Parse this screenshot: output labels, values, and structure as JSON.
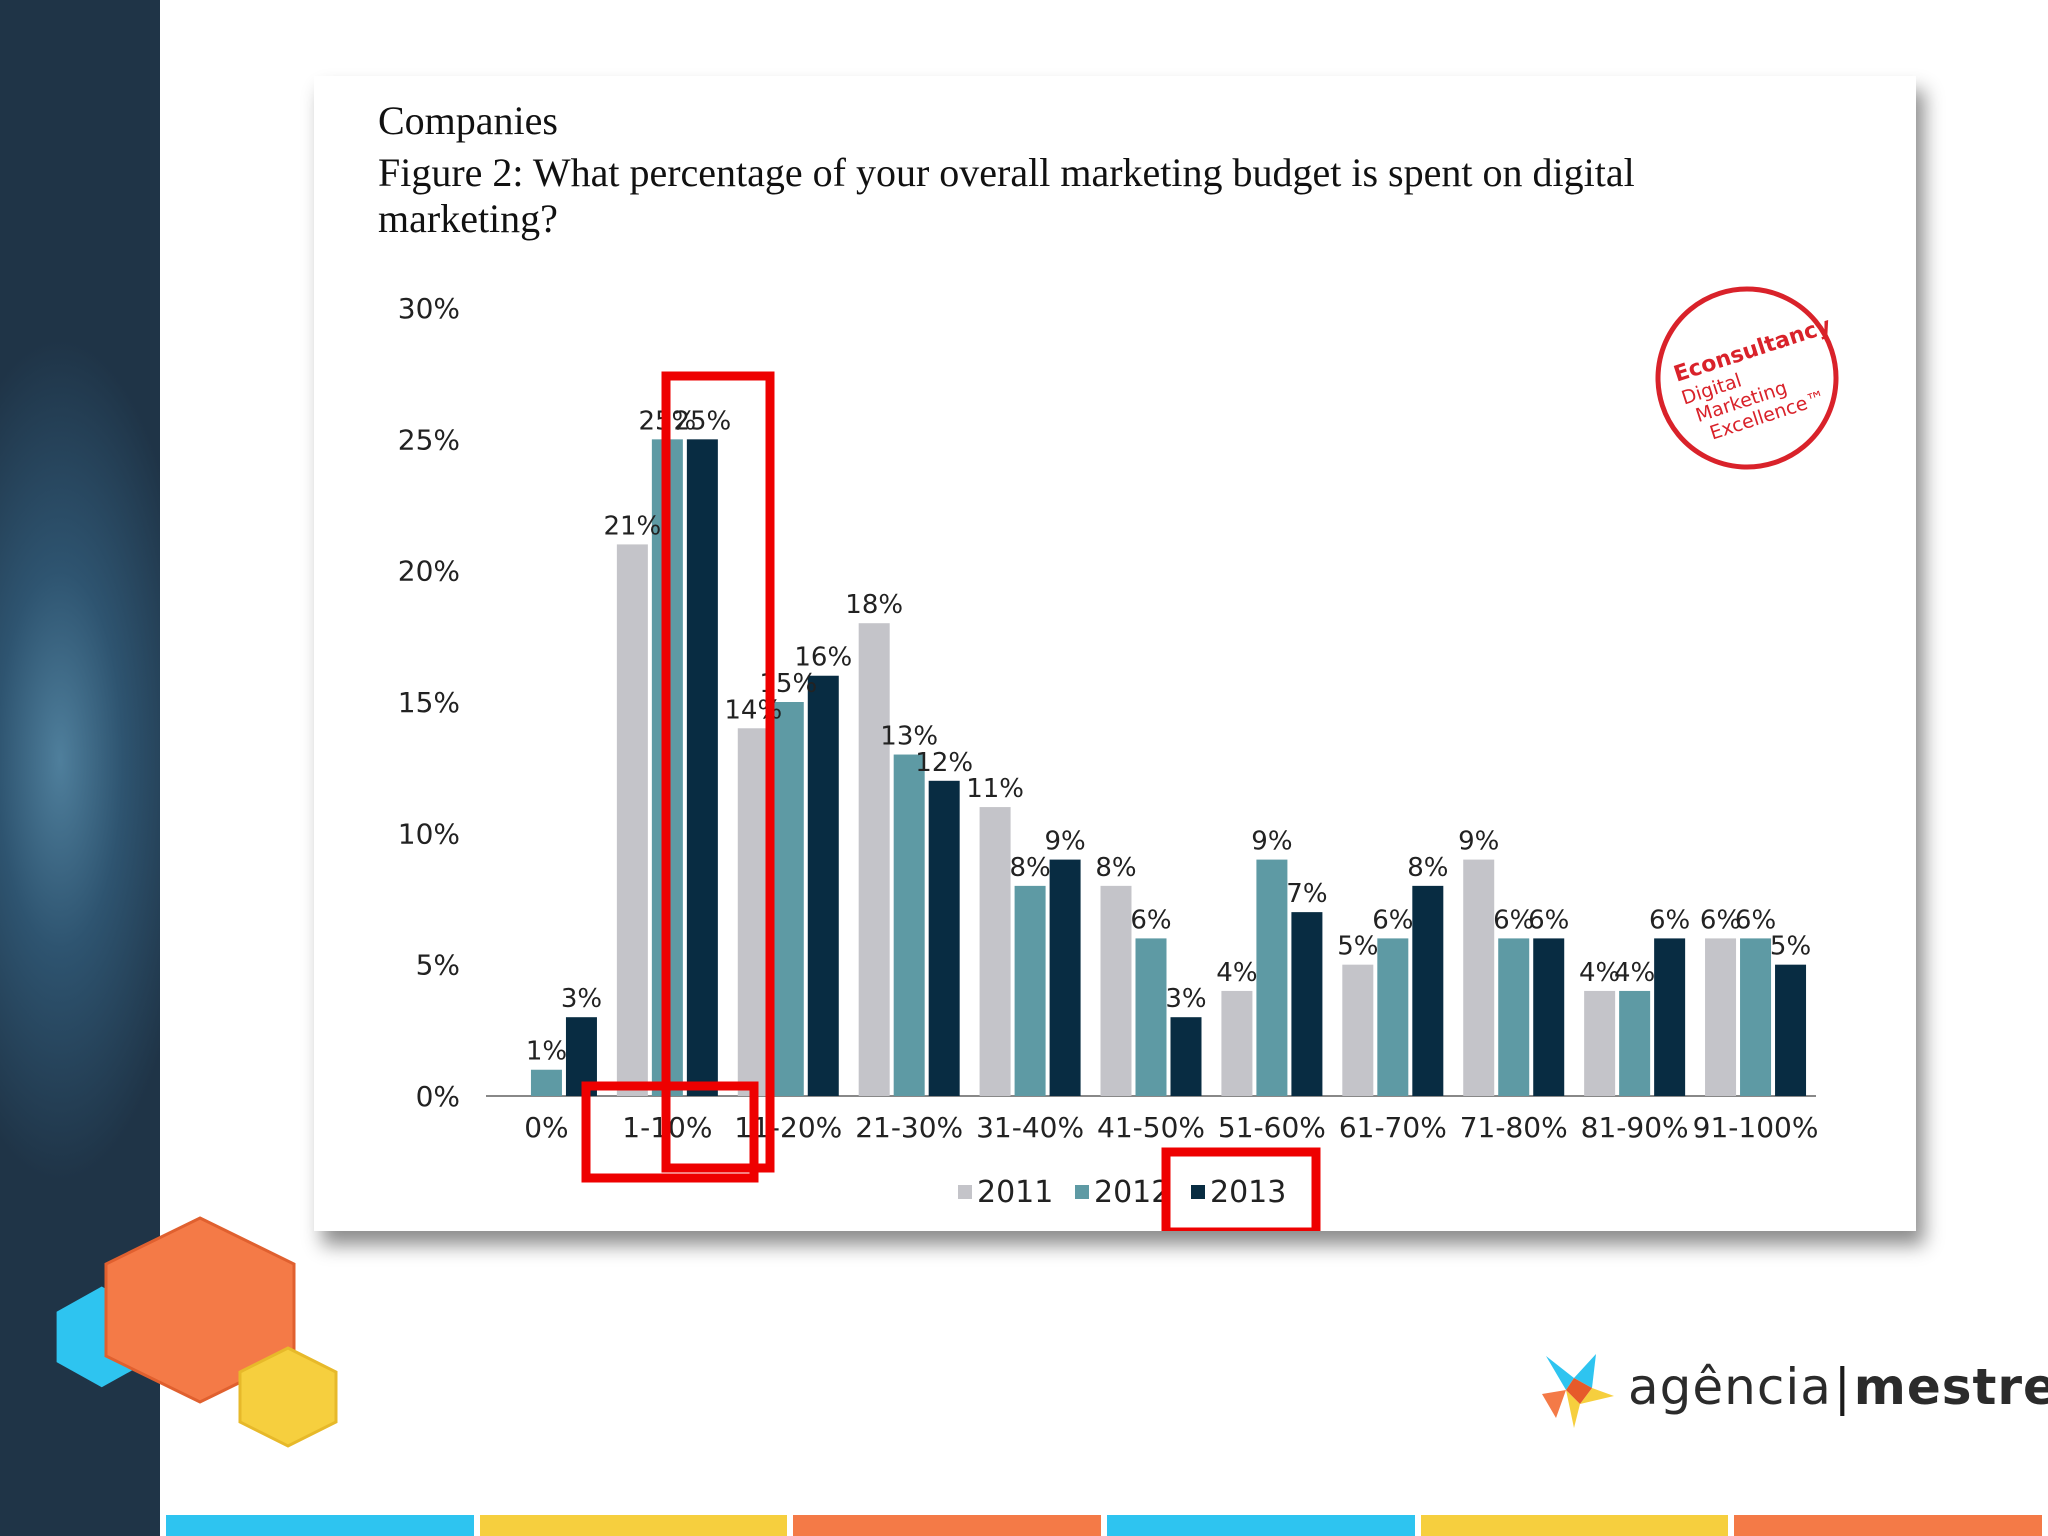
{
  "slide": {
    "heading_line1": "Companies",
    "heading_line2": "Figure 2: What percentage of your overall marketing budget is spent on digital",
    "heading_line3": "marketing?"
  },
  "stamp": {
    "brand": "Econsultancy",
    "line1": "Digital",
    "line2": "Marketing",
    "line3": "Excellence™",
    "color": "#d9222a"
  },
  "logo": {
    "part1": "agência",
    "separator": "|",
    "part2": "mestre",
    "icon": "star-burst-icon"
  },
  "chart_data": {
    "type": "bar",
    "title": "What percentage of your overall marketing budget is spent on digital marketing?",
    "categories": [
      "0%",
      "1-10%",
      "11-20%",
      "21-30%",
      "31-40%",
      "41-50%",
      "51-60%",
      "61-70%",
      "71-80%",
      "81-90%",
      "91-100%"
    ],
    "series": [
      {
        "name": "2011",
        "color": "#c4c4c9",
        "values": [
          0,
          21,
          14,
          18,
          11,
          8,
          4,
          5,
          9,
          4,
          6
        ],
        "labels": [
          "",
          "21%",
          "14%",
          "18%",
          "11%",
          "8%",
          "4%",
          "5%",
          "9%",
          "4%",
          "6%"
        ]
      },
      {
        "name": "2012",
        "color": "#5e9aa4",
        "values": [
          1,
          25,
          15,
          13,
          8,
          6,
          9,
          6,
          6,
          4,
          6
        ],
        "labels": [
          "1%",
          "25%",
          "15%",
          "13%",
          "8%",
          "6%",
          "9%",
          "6%",
          "6%",
          "4%",
          "6%"
        ]
      },
      {
        "name": "2013",
        "color": "#082c42",
        "values": [
          3,
          25,
          16,
          12,
          9,
          3,
          7,
          8,
          6,
          6,
          5
        ],
        "labels": [
          "3%",
          "25%",
          "16%",
          "12%",
          "9%",
          "3%",
          "7%",
          "8%",
          "6%",
          "6%",
          "5%"
        ]
      }
    ],
    "yticks": [
      "0%",
      "5%",
      "10%",
      "15%",
      "20%",
      "25%",
      "30%"
    ],
    "ylim": [
      0,
      30
    ],
    "xlabel": "",
    "ylabel": "",
    "legend": "bottom",
    "highlight_color": "#ee0000",
    "highlights": [
      "1-10% 2013 bar",
      "1-10% category label",
      "2013 legend entry"
    ]
  },
  "colors": {
    "bottom_bar": [
      "#2ec4f0",
      "#f6cf3e",
      "#f47a47",
      "#2ec4f0",
      "#f6cf3e",
      "#f47a47"
    ],
    "hexagons": [
      "#2ec4f0",
      "#f47a47",
      "#f6cf3e"
    ]
  }
}
